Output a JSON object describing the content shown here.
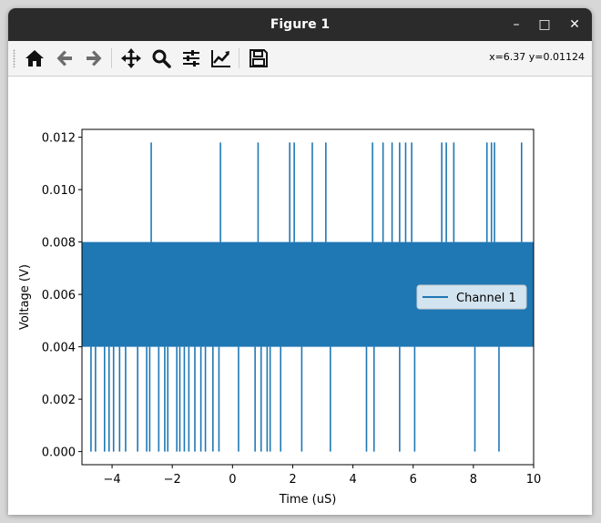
{
  "window": {
    "title": "Figure 1"
  },
  "titlebar_buttons": {
    "minimize": "–",
    "maximize": "□",
    "close": "✕"
  },
  "toolbar": {
    "icons": [
      "home-icon",
      "back-arrow-icon",
      "forward-arrow-icon",
      "pan-icon",
      "zoom-icon",
      "configure-subplots-icon",
      "edit-axis-icon",
      "save-icon"
    ],
    "coordinates": "x=6.37 y=0.01124"
  },
  "colors": {
    "series": "#1f77b4",
    "titlebar": "#2b2b2b"
  },
  "chart_data": {
    "type": "line",
    "title": "",
    "xlabel": "Time (uS)",
    "ylabel": "Voltage (V)",
    "xlim": [
      -5,
      10
    ],
    "ylim": [
      -0.0005,
      0.0123
    ],
    "xticks": [
      -4,
      -2,
      0,
      2,
      4,
      6,
      8,
      10
    ],
    "xtick_labels": [
      "−4",
      "−2",
      "0",
      "2",
      "4",
      "6",
      "8",
      "10"
    ],
    "yticks": [
      0.0,
      0.002,
      0.004,
      0.006,
      0.008,
      0.01,
      0.012
    ],
    "ytick_labels": [
      "0.000",
      "0.002",
      "0.004",
      "0.006",
      "0.008",
      "0.010",
      "0.012"
    ],
    "legend_location": "center-right",
    "grid": false,
    "series": [
      {
        "name": "Channel 1",
        "color": "#1f77b4",
        "dense_band": [
          0.004,
          0.008
        ],
        "x_range": [
          -5,
          10
        ],
        "spike_high_value": 0.0118,
        "spike_high_x": [
          -2.7,
          -0.4,
          0.85,
          1.9,
          2.05,
          2.65,
          3.1,
          4.65,
          5.0,
          5.3,
          5.55,
          5.75,
          5.95,
          6.95,
          7.1,
          7.35,
          8.45,
          8.6,
          8.7,
          9.6
        ],
        "spike_low_value": 0.0,
        "spike_low_x": [
          -4.7,
          -4.55,
          -4.25,
          -4.1,
          -3.95,
          -3.75,
          -3.55,
          -3.15,
          -2.85,
          -2.75,
          -2.45,
          -2.25,
          -2.15,
          -1.85,
          -1.75,
          -1.6,
          -1.45,
          -1.25,
          -1.05,
          -0.9,
          -0.65,
          -0.45,
          0.2,
          0.75,
          0.95,
          1.15,
          1.25,
          1.6,
          2.3,
          3.25,
          4.45,
          4.7,
          5.55,
          6.05,
          8.05,
          8.85
        ]
      }
    ]
  }
}
